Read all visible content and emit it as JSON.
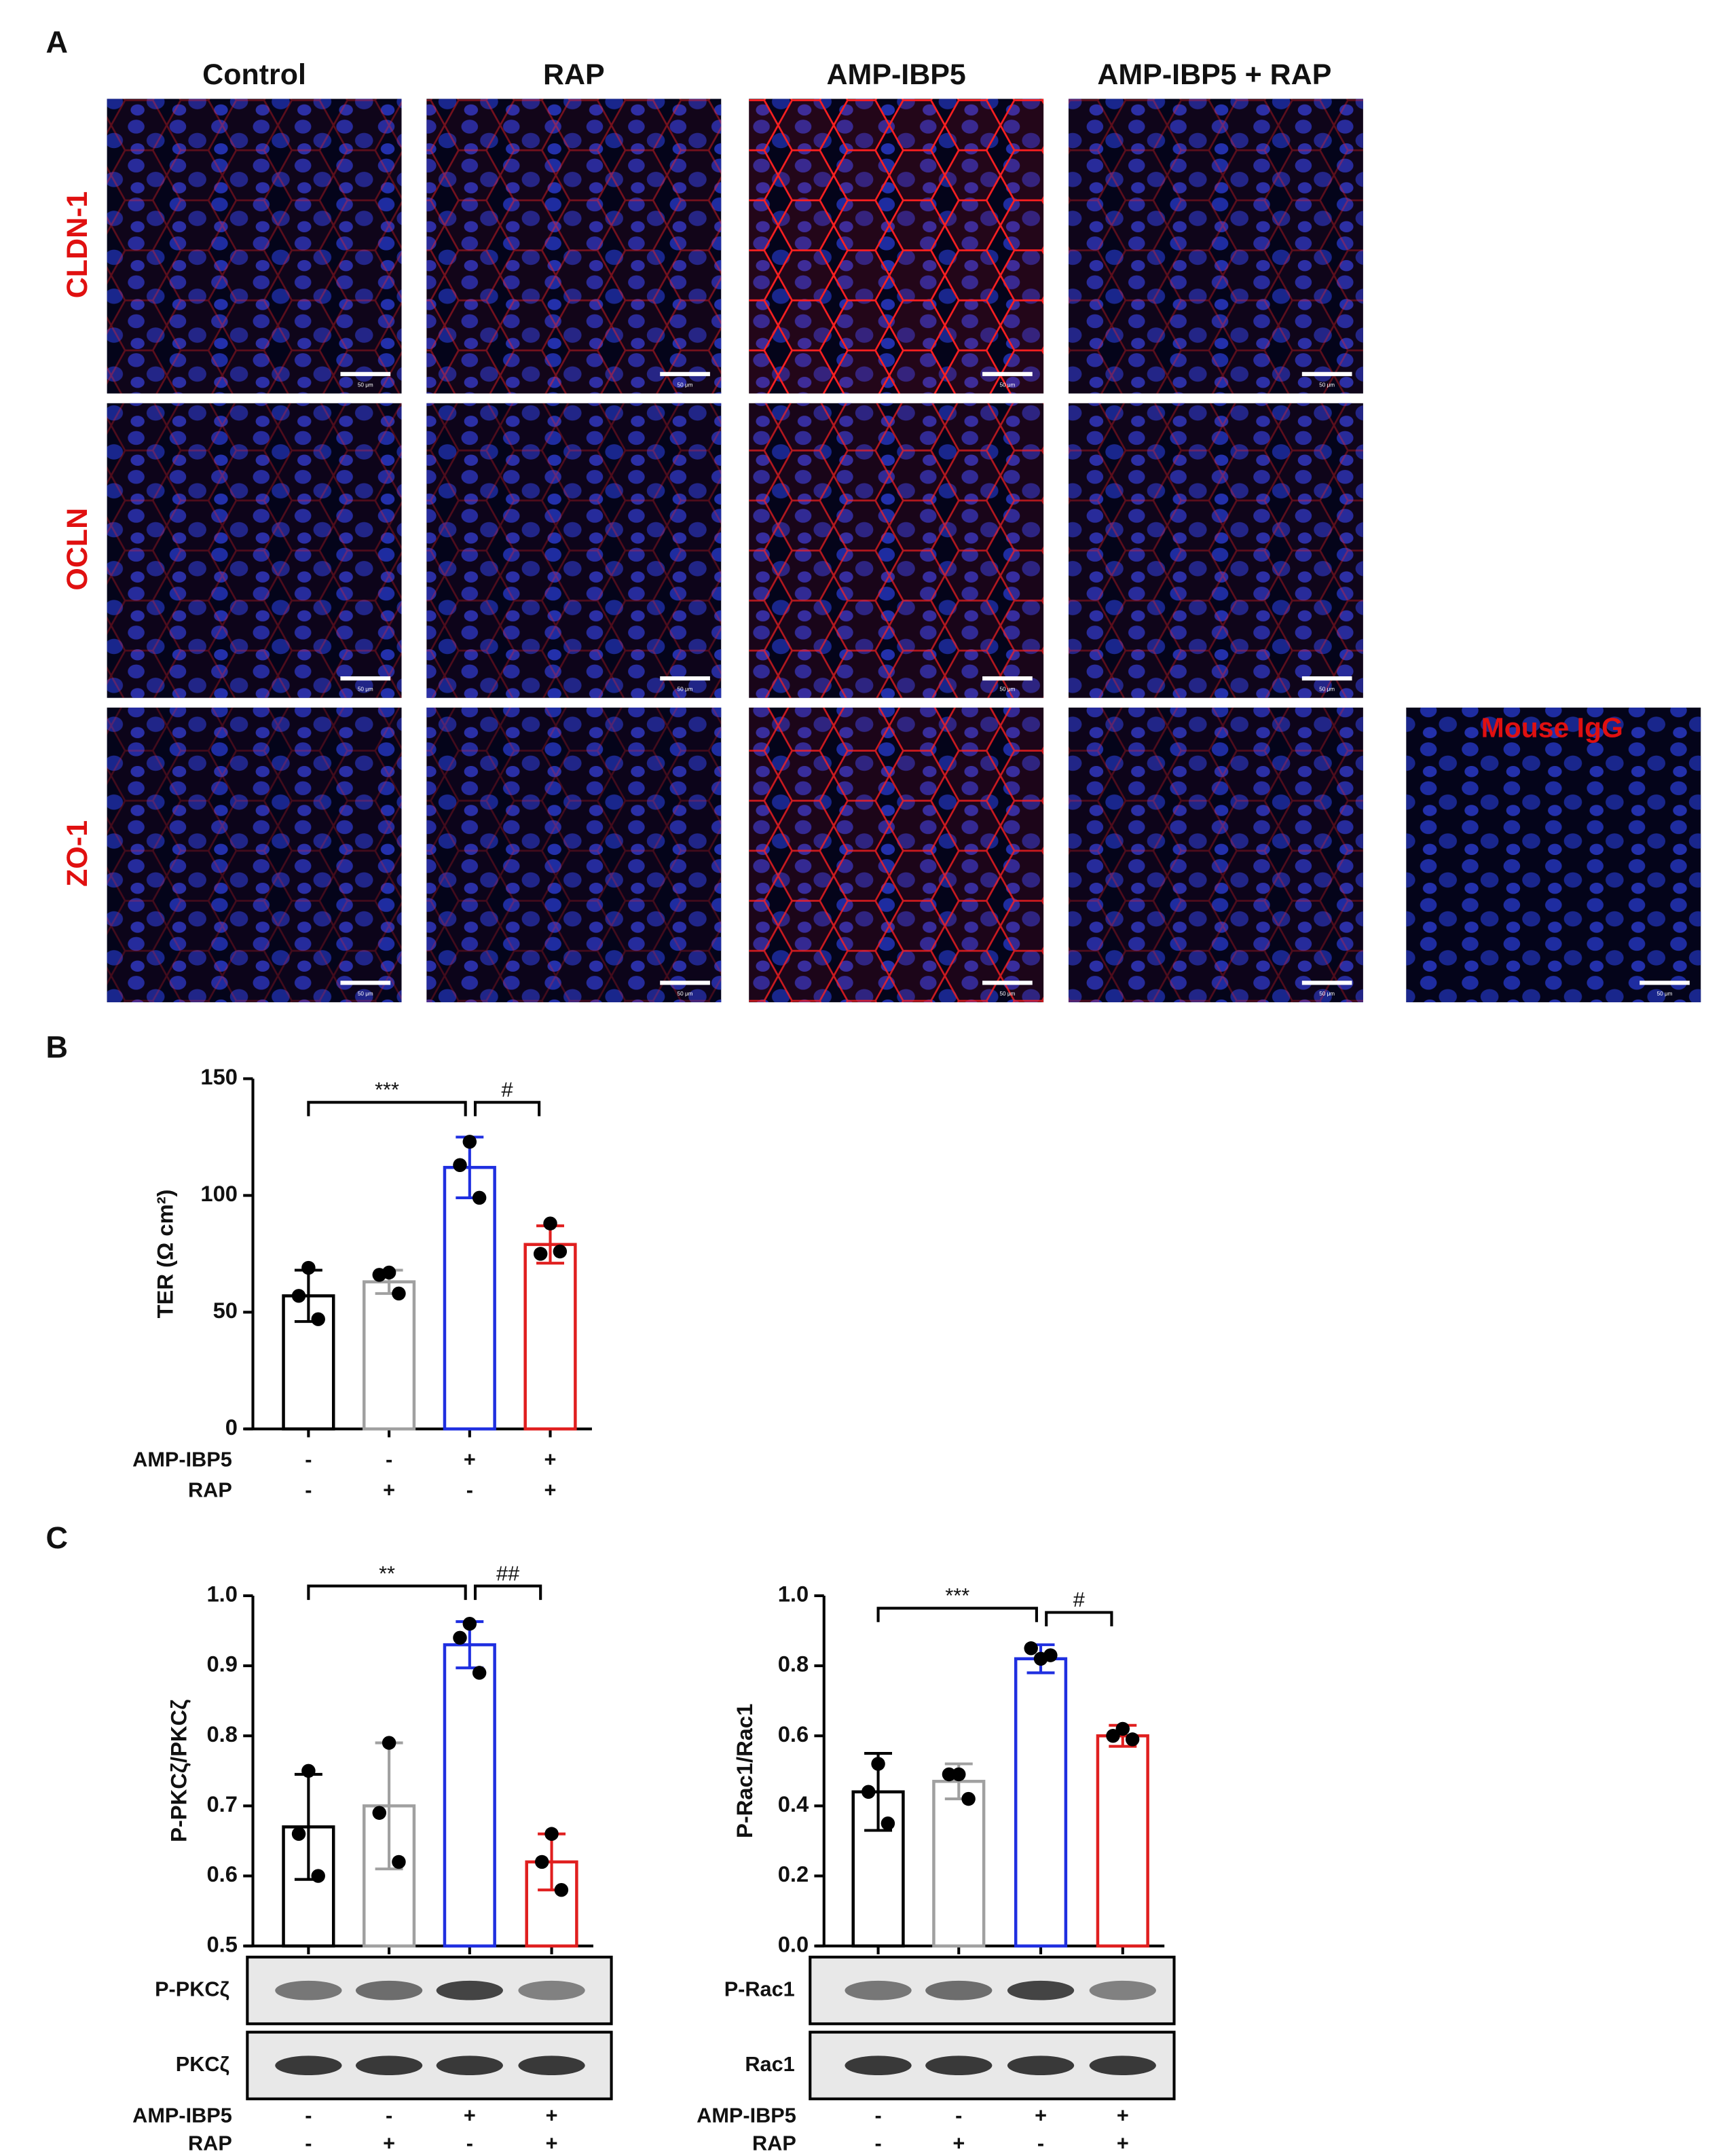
{
  "panel_labels": [
    "A",
    "B",
    "C"
  ],
  "panel_a": {
    "columns": [
      "Control",
      "RAP",
      "AMP-IBP5",
      "AMP-IBP5 + RAP"
    ],
    "rows": [
      "CLDN-1",
      "OCLN",
      "ZO-1"
    ],
    "control_label": "Mouse IgG",
    "scale_bar": "50 μm"
  },
  "chart_data": [
    {
      "type": "bar",
      "ylabel": "TER (Ω cm²)",
      "ylim": [
        0,
        150
      ],
      "yticks": [
        0,
        50,
        100,
        150
      ],
      "colors": [
        "#000000",
        "#a0a0a0",
        "#1f2fe0",
        "#e01f1f"
      ],
      "values": [
        57,
        63,
        112,
        79
      ],
      "errors": [
        11,
        5,
        13,
        8
      ],
      "points": [
        [
          69,
          57,
          47
        ],
        [
          67,
          66,
          58
        ],
        [
          123,
          113,
          99
        ],
        [
          88,
          75,
          76
        ]
      ],
      "annotations": [
        "***",
        "#"
      ],
      "treatments": [
        {
          "name": "AMP-IBP5",
          "values": [
            "-",
            "-",
            "+",
            "+"
          ]
        },
        {
          "name": "RAP",
          "values": [
            "-",
            "+",
            "-",
            "+"
          ]
        }
      ]
    },
    {
      "type": "bar",
      "ylabel": "P-PKCζ/PKCζ",
      "ylim": [
        0.5,
        1.0
      ],
      "yticks": [
        0.5,
        0.6,
        0.7,
        0.8,
        0.9,
        {
          "value": 1.0,
          "label": "1.0"
        }
      ],
      "colors": [
        "#000000",
        "#a0a0a0",
        "#1f2fe0",
        "#e01f1f"
      ],
      "values": [
        0.67,
        0.7,
        0.93,
        0.62
      ],
      "errors": [
        0.075,
        0.09,
        0.033,
        0.04
      ],
      "points": [
        [
          0.75,
          0.66,
          0.6
        ],
        [
          0.79,
          0.69,
          0.62
        ],
        [
          0.96,
          0.94,
          0.89
        ],
        [
          0.66,
          0.62,
          0.58
        ]
      ],
      "annotations": [
        "**",
        "##"
      ],
      "blots": [
        "P-PKCζ",
        "PKCζ"
      ],
      "treatments": [
        {
          "name": "AMP-IBP5",
          "values": [
            "-",
            "-",
            "+",
            "+"
          ]
        },
        {
          "name": "RAP",
          "values": [
            "-",
            "+",
            "-",
            "+"
          ]
        }
      ]
    },
    {
      "type": "bar",
      "ylabel": "P-Rac1/Rac1",
      "ylim": [
        0,
        1.0
      ],
      "yticks": [
        {
          "value": 0,
          "label": "0.0"
        },
        0.2,
        0.4,
        0.6,
        0.8,
        {
          "value": 1.0,
          "label": "1.0"
        }
      ],
      "colors": [
        "#000000",
        "#a0a0a0",
        "#1f2fe0",
        "#e01f1f"
      ],
      "values": [
        0.44,
        0.47,
        0.82,
        0.6
      ],
      "errors": [
        0.11,
        0.05,
        0.04,
        0.03
      ],
      "points": [
        [
          0.52,
          0.44,
          0.35
        ],
        [
          0.49,
          0.49,
          0.42
        ],
        [
          0.82,
          0.85,
          0.83
        ],
        [
          0.62,
          0.6,
          0.59
        ]
      ],
      "annotations": [
        "***",
        "#"
      ],
      "blots": [
        "P-Rac1",
        "Rac1"
      ],
      "treatments": [
        {
          "name": "AMP-IBP5",
          "values": [
            "-",
            "-",
            "+",
            "+"
          ]
        },
        {
          "name": "RAP",
          "values": [
            "-",
            "+",
            "-",
            "+"
          ]
        }
      ]
    }
  ]
}
